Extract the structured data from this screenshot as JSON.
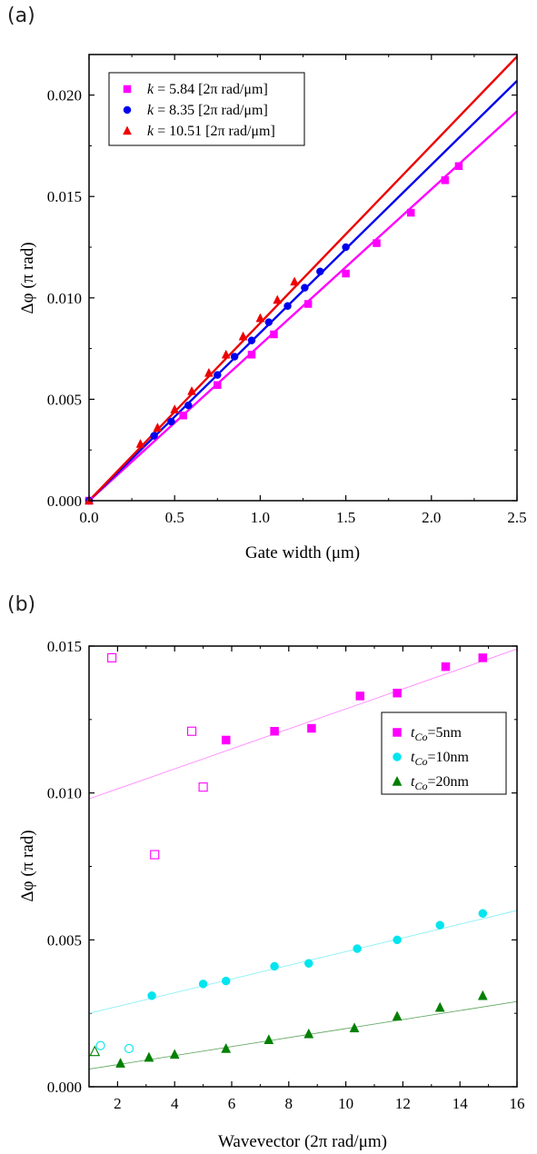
{
  "chart_data": [
    {
      "type": "scatter",
      "panel_label": "(a)",
      "xlabel": "Gate width (μm)",
      "ylabel": "Δφ (π rad)",
      "xlim": [
        0,
        2.5
      ],
      "ylim": [
        0,
        0.022
      ],
      "x_ticks": [
        "0.0",
        "0.5",
        "1.0",
        "1.5",
        "2.0",
        "2.5"
      ],
      "y_ticks": [
        "0.000",
        "0.005",
        "0.010",
        "0.015",
        "0.020"
      ],
      "x_tick_values": [
        0,
        0.5,
        1.0,
        1.5,
        2.0,
        2.5
      ],
      "y_tick_values": [
        0,
        0.005,
        0.01,
        0.015,
        0.02
      ],
      "legend_position": "top-left",
      "series": [
        {
          "name": "k = 5.84 [2π rad/μm]",
          "legend_italic": "k",
          "legend_rest": " = 5.84 [2π rad/μm]",
          "marker": "square",
          "color": "#ff00ff",
          "x": [
            0,
            0.55,
            0.75,
            0.95,
            1.08,
            1.28,
            1.5,
            1.68,
            1.88,
            2.08,
            2.16
          ],
          "y": [
            0,
            0.0042,
            0.0057,
            0.0072,
            0.0082,
            0.0097,
            0.0112,
            0.0127,
            0.0142,
            0.0158,
            0.0165
          ],
          "fit": {
            "x": [
              0,
              2.5
            ],
            "y": [
              0,
              0.0192
            ]
          }
        },
        {
          "name": "k = 8.35 [2π rad/μm]",
          "legend_italic": "k",
          "legend_rest": " = 8.35 [2π rad/μm]",
          "marker": "circle",
          "color": "#0000ee",
          "x": [
            0,
            0.38,
            0.48,
            0.58,
            0.75,
            0.85,
            0.95,
            1.05,
            1.16,
            1.26,
            1.35,
            1.5
          ],
          "y": [
            0,
            0.0032,
            0.0039,
            0.0047,
            0.0062,
            0.0071,
            0.0079,
            0.0088,
            0.0096,
            0.0105,
            0.0113,
            0.0125
          ],
          "fit": {
            "x": [
              0,
              2.5
            ],
            "y": [
              0,
              0.0207
            ]
          }
        },
        {
          "name": "k = 10.51 [2π rad/μm]",
          "legend_italic": "k",
          "legend_rest": " = 10.51 [2π rad/μm]",
          "marker": "triangle",
          "color": "#ee0000",
          "x": [
            0,
            0.3,
            0.4,
            0.5,
            0.6,
            0.7,
            0.8,
            0.9,
            1.0,
            1.1,
            1.2
          ],
          "y": [
            0,
            0.0028,
            0.0036,
            0.0045,
            0.0054,
            0.0063,
            0.0072,
            0.0081,
            0.009,
            0.0099,
            0.0108
          ],
          "fit": {
            "x": [
              0,
              2.5
            ],
            "y": [
              0,
              0.0219
            ]
          }
        }
      ]
    },
    {
      "type": "scatter",
      "panel_label": "(b)",
      "xlabel": "Wavevector (2π rad/μm)",
      "ylabel": "Δφ (π rad)",
      "xlim": [
        1,
        16
      ],
      "ylim": [
        0,
        0.015
      ],
      "x_ticks": [
        "2",
        "4",
        "6",
        "8",
        "10",
        "12",
        "14",
        "16"
      ],
      "y_ticks": [
        "0.000",
        "0.005",
        "0.010",
        "0.015"
      ],
      "x_tick_values": [
        2,
        4,
        6,
        8,
        10,
        12,
        14,
        16
      ],
      "y_tick_values": [
        0,
        0.005,
        0.01,
        0.015
      ],
      "legend_position": "right",
      "series": [
        {
          "name": "tCo=5nm",
          "legend_italic": "t",
          "legend_sub": "Co",
          "legend_rest": "=5nm",
          "marker": "square",
          "color": "#ff00ff",
          "fit_color": "#ff88ff",
          "x": [
            5.8,
            7.5,
            8.8,
            10.5,
            11.8,
            13.5,
            14.8
          ],
          "y": [
            0.0118,
            0.0121,
            0.0122,
            0.0133,
            0.0134,
            0.0143,
            0.0146
          ],
          "open_x": [
            1.8,
            3.3,
            4.6,
            5.0
          ],
          "open_y": [
            0.0146,
            0.0079,
            0.0121,
            0.0102
          ],
          "fit": {
            "x": [
              1,
              16
            ],
            "y": [
              0.0098,
              0.0149
            ]
          }
        },
        {
          "name": "tCo=10nm",
          "legend_italic": "t",
          "legend_sub": "Co",
          "legend_rest": "=10nm",
          "marker": "circle",
          "color": "#00e5ee",
          "fit_color": "#88f0f4",
          "x": [
            3.2,
            5.0,
            5.8,
            7.5,
            8.7,
            10.4,
            11.8,
            13.3,
            14.8
          ],
          "y": [
            0.0031,
            0.0035,
            0.0036,
            0.0041,
            0.0042,
            0.0047,
            0.005,
            0.0055,
            0.0059
          ],
          "open_x": [
            1.4,
            2.4
          ],
          "open_y": [
            0.0014,
            0.0013
          ],
          "fit": {
            "x": [
              1,
              16
            ],
            "y": [
              0.0025,
              0.006
            ]
          }
        },
        {
          "name": "tCo=20nm",
          "legend_italic": "t",
          "legend_sub": "Co",
          "legend_rest": "=20nm",
          "marker": "triangle",
          "color": "#008000",
          "fit_color": "#66aa66",
          "x": [
            2.1,
            3.1,
            4.0,
            5.8,
            7.3,
            8.7,
            10.3,
            11.8,
            13.3,
            14.8
          ],
          "y": [
            0.0008,
            0.001,
            0.0011,
            0.0013,
            0.0016,
            0.0018,
            0.002,
            0.0024,
            0.0027,
            0.0031
          ],
          "open_x": [
            1.2
          ],
          "open_y": [
            0.0012
          ],
          "fit": {
            "x": [
              1,
              16
            ],
            "y": [
              0.0006,
              0.0029
            ]
          }
        }
      ]
    }
  ]
}
